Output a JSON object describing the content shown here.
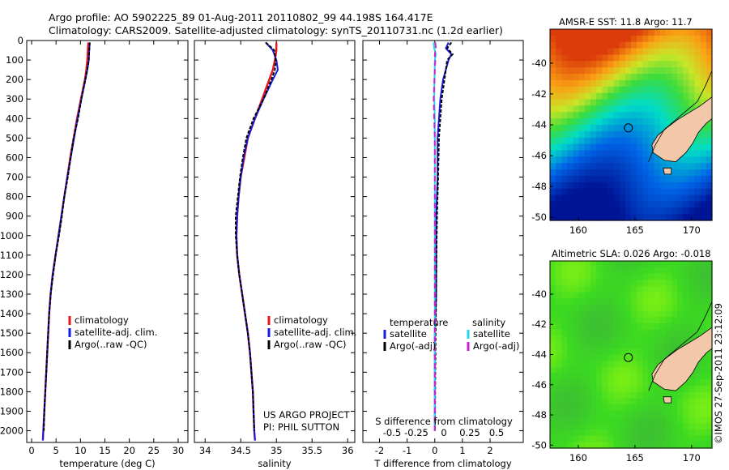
{
  "header": {
    "line1": "Argo profile: AO 5902225_89 01-Aug-2011 20110802_99 44.198S 164.417E",
    "line2": "Climatology: CARS2009. Satellite-adjusted climatology: synTS_20110731.nc (1.2d earlier)"
  },
  "colors": {
    "climatology": "#e8171f",
    "satellite": "#1a1ae6",
    "argo": "#000000",
    "satellite_salinity": "#22d8e8",
    "argo_salinity": "#cc22cc",
    "land": "#f2c8a8"
  },
  "chart_data": [
    {
      "type": "line",
      "id": "temperature",
      "xlabel": "temperature (deg C)",
      "ylabel": "",
      "xlim": [
        -1,
        32
      ],
      "ylim": [
        2060,
        0
      ],
      "xticks": [
        "0",
        "5",
        "10",
        "15",
        "20",
        "25",
        "30"
      ],
      "xtick_values": [
        0,
        5,
        10,
        15,
        20,
        25,
        30
      ],
      "yticks": [
        "0",
        "100",
        "200",
        "300",
        "400",
        "500",
        "600",
        "700",
        "800",
        "900",
        "1000",
        "1100",
        "1200",
        "1300",
        "1400",
        "1500",
        "1600",
        "1700",
        "1800",
        "1900",
        "2000"
      ],
      "ytick_values": [
        0,
        100,
        200,
        300,
        400,
        500,
        600,
        700,
        800,
        900,
        1000,
        1100,
        1200,
        1300,
        1400,
        1500,
        1600,
        1700,
        1800,
        1900,
        2000
      ],
      "legend": [
        "climatology",
        "satellite-adj. clim.",
        "Argo(..raw -QC)"
      ],
      "series": [
        {
          "name": "climatology",
          "depth": [
            10,
            50,
            100,
            150,
            200,
            300,
            400,
            500,
            600,
            700,
            800,
            900,
            1000,
            1100,
            1200,
            1300,
            1400,
            1500,
            1600,
            1700,
            1800,
            1900,
            2000,
            2050
          ],
          "values": [
            11.6,
            11.5,
            11.4,
            11.2,
            10.9,
            10.1,
            9.3,
            8.6,
            7.9,
            7.3,
            6.7,
            6.1,
            5.5,
            4.9,
            4.3,
            3.9,
            3.6,
            3.4,
            3.2,
            3.0,
            2.8,
            2.6,
            2.4,
            2.3
          ]
        },
        {
          "name": "satellite-adj. clim.",
          "depth": [
            10,
            50,
            100,
            150,
            200,
            300,
            400,
            500,
            600,
            700,
            800,
            900,
            1000,
            1100,
            1200,
            1300,
            1400,
            1500,
            1600,
            1700,
            1800,
            1900,
            2000,
            2050
          ],
          "values": [
            11.9,
            11.8,
            11.7,
            11.4,
            11.0,
            10.2,
            9.4,
            8.7,
            8.0,
            7.3,
            6.7,
            6.1,
            5.5,
            4.9,
            4.3,
            3.9,
            3.6,
            3.4,
            3.2,
            3.0,
            2.8,
            2.6,
            2.4,
            2.3
          ]
        },
        {
          "name": "Argo(..raw -QC)",
          "depth": [
            10,
            50,
            100,
            150,
            200,
            300,
            400,
            500,
            600,
            700,
            800,
            900,
            1000,
            1100,
            1200,
            1300,
            1400,
            1500,
            1600,
            1700,
            1800,
            1900,
            2000
          ],
          "values": [
            11.9,
            11.8,
            11.7,
            11.4,
            11.0,
            10.2,
            9.5,
            8.6,
            8.0,
            7.4,
            6.7,
            6.2,
            5.6,
            4.9,
            4.4,
            3.9,
            3.6,
            3.4,
            3.2,
            3.0,
            2.8,
            2.6,
            2.5
          ]
        }
      ],
      "annotations": []
    },
    {
      "type": "line",
      "id": "salinity",
      "xlabel": "salinity",
      "xlim": [
        33.85,
        36.1
      ],
      "ylim": [
        2060,
        0
      ],
      "xticks": [
        "34",
        "34.5",
        "35",
        "35.5",
        "36"
      ],
      "xtick_values": [
        34,
        34.5,
        35,
        35.5,
        36
      ],
      "legend": [
        "climatology",
        "satellite-adj. clim.",
        "Argo(..raw -QC)"
      ],
      "series": [
        {
          "name": "climatology",
          "depth": [
            10,
            50,
            100,
            150,
            200,
            300,
            400,
            500,
            600,
            700,
            800,
            900,
            1000,
            1100,
            1200,
            1300,
            1400,
            1500,
            1600,
            1700,
            1800,
            1900,
            2000,
            2050
          ],
          "values": [
            35.0,
            35.0,
            34.98,
            34.95,
            34.9,
            34.8,
            34.7,
            34.6,
            34.55,
            34.5,
            34.47,
            34.45,
            34.44,
            34.45,
            34.48,
            34.52,
            34.56,
            34.6,
            34.63,
            34.65,
            34.67,
            34.68,
            34.69,
            34.7
          ]
        },
        {
          "name": "satellite-adj. clim.",
          "depth": [
            10,
            50,
            100,
            150,
            200,
            300,
            400,
            500,
            600,
            700,
            800,
            900,
            1000,
            1100,
            1200,
            1300,
            1400,
            1500,
            1600,
            1700,
            1800,
            1900,
            2000,
            2050
          ],
          "values": [
            34.85,
            34.95,
            35.0,
            35.02,
            34.95,
            34.82,
            34.7,
            34.6,
            34.54,
            34.5,
            34.47,
            34.45,
            34.44,
            34.45,
            34.48,
            34.52,
            34.56,
            34.6,
            34.63,
            34.65,
            34.67,
            34.68,
            34.69,
            34.7
          ]
        },
        {
          "name": "Argo(..raw -QC)",
          "depth": [
            10,
            50,
            100,
            150,
            200,
            300,
            400,
            500,
            600,
            700,
            800,
            900,
            1000,
            1100,
            1200,
            1300,
            1400,
            1500,
            1600,
            1700,
            1800,
            1900,
            2000
          ],
          "values": [
            34.85,
            34.97,
            34.99,
            34.98,
            34.93,
            34.82,
            34.68,
            34.58,
            34.53,
            34.49,
            34.46,
            34.43,
            34.43,
            34.45,
            34.48,
            34.52,
            34.56,
            34.6,
            34.63,
            34.65,
            34.67,
            34.68,
            34.69
          ]
        }
      ],
      "annotations": [
        "US ARGO PROJECT",
        "PI: PHIL SUTTON"
      ]
    },
    {
      "type": "line",
      "id": "difference",
      "xlabel": "T difference from climatology",
      "xlim": [
        -2.6,
        3.2
      ],
      "ylim": [
        2060,
        0
      ],
      "xticks": [
        "-2",
        "-1",
        "0",
        "1",
        "2"
      ],
      "xtick_values": [
        -2,
        -1,
        0,
        1,
        2
      ],
      "top_xticks": [
        "-0.5",
        "-0.25",
        "0",
        "0.25",
        "0.5"
      ],
      "top_xtick_values": [
        -0.5,
        -0.25,
        0,
        0.25,
        0.5
      ],
      "top_label": "S difference from climatology",
      "legend_headers": [
        "temperature",
        "salinity"
      ],
      "legend": [
        "satellite",
        "Argo(-adj)",
        "satellite",
        "Argo(-adj)"
      ],
      "series": [
        {
          "name": "temperature satellite",
          "depth": [
            10,
            40,
            70,
            100,
            200,
            300,
            400,
            500,
            700,
            900,
            1100,
            1300,
            1500,
            1700,
            1900,
            2000
          ],
          "values": [
            0.5,
            0.4,
            0.6,
            0.5,
            0.3,
            0.2,
            0.15,
            0.1,
            0.1,
            0.05,
            0.05,
            0.05,
            0.0,
            0.0,
            0.0,
            0.0
          ]
        },
        {
          "name": "temperature Argo(-adj)",
          "depth": [
            10,
            40,
            70,
            100,
            200,
            300,
            400,
            500,
            700,
            900,
            1100,
            1300,
            1500,
            1700,
            1900,
            2000
          ],
          "values": [
            0.6,
            0.45,
            0.65,
            0.45,
            0.35,
            0.25,
            0.2,
            0.15,
            0.12,
            0.08,
            0.06,
            0.05,
            0.03,
            0.02,
            0.01,
            0.01
          ]
        },
        {
          "name": "salinity satellite",
          "depth": [
            10,
            40,
            70,
            100,
            200,
            300,
            400,
            500,
            700,
            900,
            1100,
            1300,
            1500,
            1700,
            1900,
            2000
          ],
          "values": [
            -0.02,
            -0.01,
            0.02,
            0.0,
            -0.005,
            -0.01,
            0.0,
            0.0,
            0.0,
            0.0,
            0.0,
            0.0,
            0.0,
            0.0,
            0.0,
            0.0
          ]
        },
        {
          "name": "salinity Argo(-adj)",
          "depth": [
            10,
            40,
            70,
            100,
            200,
            300,
            400,
            500,
            700,
            900,
            1100,
            1300,
            1500,
            1700,
            1900,
            2000
          ],
          "values": [
            0.01,
            0.02,
            0.0,
            0.01,
            -0.005,
            -0.02,
            -0.01,
            0.0,
            0.0,
            0.0,
            0.0,
            0.0,
            0.0,
            0.0,
            0.0,
            0.0
          ]
        }
      ],
      "annotations": []
    }
  ],
  "maps": [
    {
      "id": "sst-map",
      "title": "AMSR-E SST: 11.8 Argo: 11.7",
      "xticks": [
        "160",
        "165",
        "170"
      ],
      "xtick_values": [
        160,
        165,
        170
      ],
      "yticks": [
        "-40",
        "-42",
        "-44",
        "-46",
        "-48",
        "-50"
      ],
      "ytick_values": [
        -40,
        -42,
        -44,
        -46,
        -48,
        -50
      ],
      "lon_range": [
        157.5,
        171.8
      ],
      "lat_range": [
        -50.2,
        -37.8
      ],
      "argo_marker": {
        "lon": 164.417,
        "lat": -44.198
      }
    },
    {
      "id": "sla-map",
      "title": "Altimetric SLA: 0.026 Argo: -0.018",
      "xticks": [
        "160",
        "165",
        "170"
      ],
      "xtick_values": [
        160,
        165,
        170
      ],
      "yticks": [
        "-40",
        "-42",
        "-44",
        "-46",
        "-48",
        "-50"
      ],
      "ytick_values": [
        -40,
        -42,
        -44,
        -46,
        -48,
        -50
      ],
      "lon_range": [
        157.5,
        171.8
      ],
      "lat_range": [
        -50.2,
        -37.8
      ],
      "argo_marker": {
        "lon": 164.417,
        "lat": -44.198
      }
    }
  ],
  "side_stamp": "©IMOS 27-Sep-2011 23:12:09"
}
